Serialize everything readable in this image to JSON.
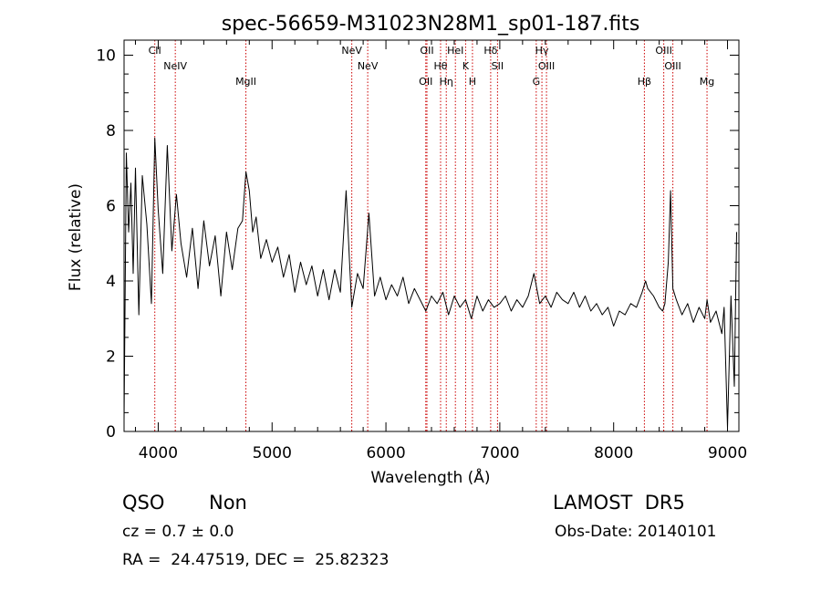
{
  "chart_data": {
    "type": "line",
    "title": "spec-56659-M31023N28M1_sp01-187.fits",
    "xlabel": "Wavelength (Å)",
    "ylabel": "Flux (relative)",
    "xlim": [
      3700,
      9100
    ],
    "ylim": [
      0,
      10.4
    ],
    "x_ticks": [
      4000,
      5000,
      6000,
      7000,
      8000,
      9000
    ],
    "y_ticks": [
      0,
      2,
      4,
      6,
      8,
      10
    ],
    "grid": false,
    "series": [
      {
        "x": [
          3700,
          3720,
          3740,
          3760,
          3780,
          3800,
          3830,
          3860,
          3900,
          3940,
          3970,
          4000,
          4040,
          4080,
          4120,
          4160,
          4200,
          4250,
          4300,
          4350,
          4400,
          4450,
          4500,
          4550,
          4600,
          4650,
          4700,
          4740,
          4770,
          4800,
          4830,
          4860,
          4900,
          4950,
          5000,
          5050,
          5100,
          5150,
          5200,
          5250,
          5300,
          5350,
          5400,
          5450,
          5500,
          5550,
          5600,
          5650,
          5700,
          5750,
          5800,
          5850,
          5900,
          5950,
          6000,
          6050,
          6100,
          6150,
          6200,
          6250,
          6300,
          6350,
          6400,
          6450,
          6500,
          6550,
          6600,
          6650,
          6700,
          6750,
          6800,
          6850,
          6900,
          6950,
          7000,
          7050,
          7100,
          7150,
          7200,
          7250,
          7300,
          7350,
          7400,
          7450,
          7500,
          7550,
          7600,
          7650,
          7700,
          7750,
          7800,
          7850,
          7900,
          7950,
          8000,
          8050,
          8100,
          8150,
          8200,
          8250,
          8280,
          8300,
          8350,
          8400,
          8430,
          8450,
          8480,
          8500,
          8520,
          8550,
          8600,
          8650,
          8700,
          8750,
          8800,
          8820,
          8850,
          8900,
          8950,
          8970,
          9000,
          9030,
          9060,
          9080
        ],
        "y": [
          0.3,
          7.4,
          5.3,
          6.6,
          4.2,
          7.0,
          3.1,
          6.8,
          5.5,
          3.4,
          7.8,
          5.9,
          4.2,
          7.6,
          4.8,
          6.3,
          5.0,
          4.1,
          5.4,
          3.8,
          5.6,
          4.4,
          5.2,
          3.6,
          5.3,
          4.3,
          5.4,
          5.6,
          6.9,
          6.4,
          5.3,
          5.7,
          4.6,
          5.1,
          4.5,
          4.9,
          4.1,
          4.7,
          3.7,
          4.5,
          3.9,
          4.4,
          3.6,
          4.3,
          3.5,
          4.3,
          3.7,
          6.4,
          3.3,
          4.2,
          3.8,
          5.8,
          3.6,
          4.1,
          3.5,
          3.9,
          3.6,
          4.1,
          3.4,
          3.8,
          3.5,
          3.2,
          3.6,
          3.4,
          3.7,
          3.1,
          3.6,
          3.3,
          3.5,
          3.0,
          3.6,
          3.2,
          3.5,
          3.3,
          3.4,
          3.6,
          3.2,
          3.5,
          3.3,
          3.6,
          4.2,
          3.4,
          3.6,
          3.3,
          3.7,
          3.5,
          3.4,
          3.7,
          3.3,
          3.6,
          3.2,
          3.4,
          3.1,
          3.3,
          2.8,
          3.2,
          3.1,
          3.4,
          3.3,
          3.7,
          4.0,
          3.8,
          3.6,
          3.3,
          3.2,
          3.4,
          4.5,
          6.4,
          3.8,
          3.5,
          3.1,
          3.4,
          2.9,
          3.3,
          3.0,
          3.5,
          2.9,
          3.2,
          2.6,
          3.3,
          0.1,
          3.6,
          1.2,
          5.3
        ]
      }
    ],
    "lines": [
      {
        "label": "CII",
        "x": 3970
      },
      {
        "label": "NeIV",
        "x": 4150
      },
      {
        "label": "MgII",
        "x": 4770
      },
      {
        "label": "NeV",
        "x": 5700
      },
      {
        "label": "NeV",
        "x": 5840
      },
      {
        "label": "OII",
        "x": 6350
      },
      {
        "label": "OII",
        "x": 6360
      },
      {
        "label": "Hθ",
        "x": 6480
      },
      {
        "label": "Hη",
        "x": 6530
      },
      {
        "label": "HeI",
        "x": 6610
      },
      {
        "label": "K",
        "x": 6700
      },
      {
        "label": "H",
        "x": 6760
      },
      {
        "label": "Hδ",
        "x": 6920
      },
      {
        "label": "SII",
        "x": 6980
      },
      {
        "label": "G",
        "x": 7320
      },
      {
        "label": "Hγ",
        "x": 7370
      },
      {
        "label": "OIII",
        "x": 7410
      },
      {
        "label": "Hβ",
        "x": 8270
      },
      {
        "label": "OIII",
        "x": 8440
      },
      {
        "label": "OIII",
        "x": 8520
      },
      {
        "label": "Mg",
        "x": 8820
      }
    ]
  },
  "info": {
    "class": "QSO",
    "subclass": "Non",
    "cz": "cz = 0.7 ± 0.0",
    "coords": "RA =  24.47519, DEC =  25.82323",
    "release": "LAMOST  DR5",
    "obs_date": "Obs-Date: 20140101"
  },
  "colors": {
    "spectrum": "#000000",
    "lines": "#cc0000",
    "axes": "#000000"
  }
}
